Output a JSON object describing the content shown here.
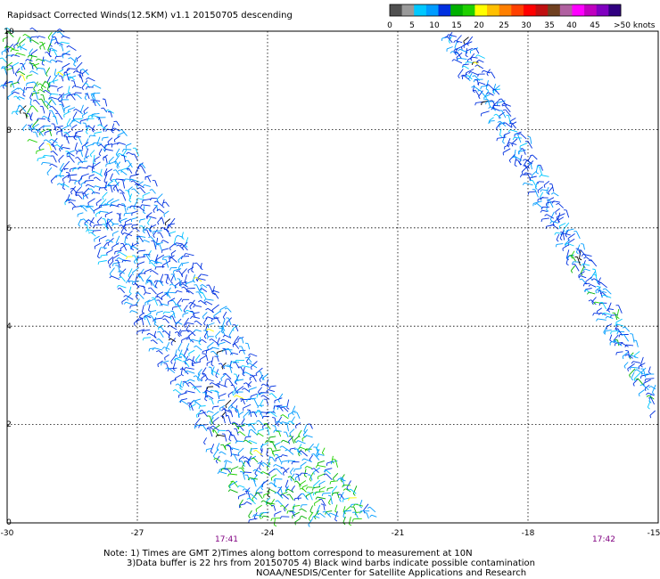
{
  "title": "Rapidsact Corrected Winds(12.5KM) v1.1 20150705 descending",
  "legend": {
    "labels": [
      "0",
      "5",
      "10",
      "15",
      "20",
      "25",
      "30",
      "35",
      "40",
      "45",
      ">50 knots"
    ],
    "colors": [
      "#505050",
      "#9a9a9a",
      "#00c8ff",
      "#009cff",
      "#0030e0",
      "#00b000",
      "#20d000",
      "#ffff00",
      "#ffc000",
      "#ff8000",
      "#ff4000",
      "#ff0000",
      "#c01010",
      "#704020",
      "#b060a0",
      "#ff00ff",
      "#c000c0",
      "#8000c0",
      "#300080"
    ]
  },
  "axes": {
    "x_ticks": [
      "-30",
      "-27",
      "-24",
      "-21",
      "-18",
      "-15"
    ],
    "y_ticks": [
      "0",
      "2",
      "4",
      "6",
      "8",
      "10"
    ],
    "x_range": [
      -30,
      -15
    ],
    "y_range": [
      0,
      10
    ]
  },
  "times": [
    "17:41",
    "17:42"
  ],
  "notes": {
    "line1": "Note: 1) Times are GMT 2)Times along bottom correspond to measurement at 10N",
    "line2": "3)Data buffer is 22 hrs from 20150705 4) Black wind barbs indicate possible contamination",
    "line3": "NOAA/NESDIS/Center for Satellite Applications and Research"
  },
  "swaths": [
    {
      "name": "swath-1741",
      "lon_lat_outline": [
        [
          -30,
          10
        ],
        [
          -28.6,
          10
        ],
        [
          -24.3,
          3.5
        ],
        [
          -21.3,
          0
        ],
        [
          -24.3,
          0
        ],
        [
          -30,
          8.8
        ]
      ]
    },
    {
      "name": "swath-1742",
      "lon_lat_outline": [
        [
          -20,
          10
        ],
        [
          -19.3,
          10
        ],
        [
          -15,
          2.9
        ],
        [
          -15,
          2.1
        ],
        [
          -17.8,
          6.6
        ]
      ]
    }
  ]
}
